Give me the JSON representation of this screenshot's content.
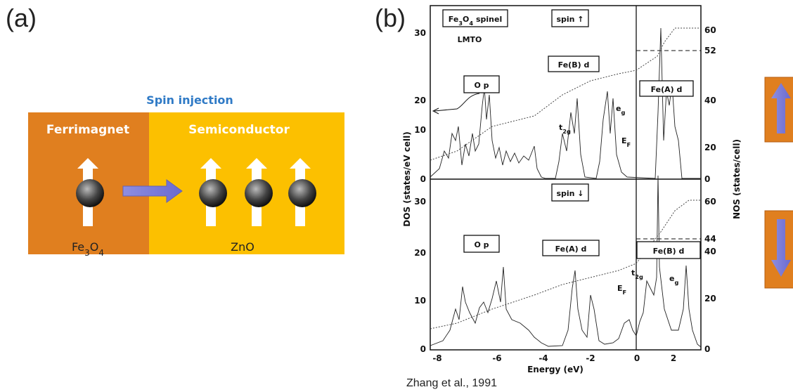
{
  "panel_a": {
    "label": "(a)",
    "heading": "Spin injection",
    "left_title": "Ferrimagnet",
    "right_title": "Semiconductor",
    "left_material": [
      {
        "text": "Fe"
      },
      {
        "text": "3",
        "sub": true
      },
      {
        "text": "O"
      },
      {
        "text": "4",
        "sub": true
      }
    ],
    "right_material": [
      {
        "text": "ZnO"
      }
    ]
  },
  "panel_b": {
    "label": "(b)",
    "y_label_left": "DOS (states/eV cell)",
    "y_label_right": "NOS (states/cell)",
    "x_label": "Energy (eV)",
    "x_ticks": [
      -8,
      -6,
      -4,
      -2,
      0,
      2
    ],
    "top_left_ticks": [
      30,
      20,
      10,
      0
    ],
    "bottom_left_ticks": [
      30,
      20,
      10,
      0
    ],
    "top_right_ticks": [
      60,
      52,
      40,
      20,
      0
    ],
    "bottom_right_ticks": [
      60,
      44,
      40,
      20,
      0
    ],
    "top": {
      "box_title": [
        {
          "text": "Fe"
        },
        {
          "text": "3",
          "sub": true
        },
        {
          "text": "O"
        },
        {
          "text": "4",
          "sub": true
        },
        {
          "text": " spinel"
        }
      ],
      "method": "LMTO",
      "spin": "spin ↑",
      "op": "O p",
      "fe_b": "Fe(B) d",
      "fe_a": "Fe(A) d",
      "t2g": [
        {
          "text": "t"
        },
        {
          "text": "2g",
          "sub": true
        }
      ],
      "eg": [
        {
          "text": "e"
        },
        {
          "text": "g",
          "sub": true
        }
      ],
      "ef": [
        {
          "text": "E"
        },
        {
          "text": "F",
          "sub": true
        }
      ]
    },
    "bottom": {
      "spin": "spin ↓",
      "op": "O p",
      "fe_a": "Fe(A) d",
      "fe_b": "Fe(B) d",
      "t2g": [
        {
          "text": "t"
        },
        {
          "text": "2g",
          "sub": true
        }
      ],
      "eg": [
        {
          "text": "e"
        },
        {
          "text": "g",
          "sub": true
        }
      ],
      "ef": [
        {
          "text": "E"
        },
        {
          "text": "F",
          "sub": true
        }
      ]
    },
    "citation": "Zhang et al., 1991"
  }
}
